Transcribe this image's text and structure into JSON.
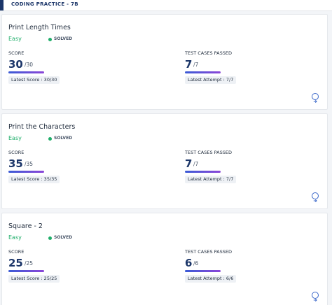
{
  "header": {
    "title": "CODING PRACTICE - 7B"
  },
  "labels": {
    "score": "SCORE",
    "test_cases": "TEST CASES PASSED"
  },
  "problems": [
    {
      "title": "Print Length Times",
      "difficulty": "Easy",
      "status": "SOLVED",
      "score": "30",
      "score_total": "/30",
      "latest_score": "Latest Score : 30/30",
      "tests": "7",
      "tests_total": "/7",
      "latest_attempt": "Latest Attempt : 7/7"
    },
    {
      "title": "Print the Characters",
      "difficulty": "Easy",
      "status": "SOLVED",
      "score": "35",
      "score_total": "/35",
      "latest_score": "Latest Score : 35/35",
      "tests": "7",
      "tests_total": "/7",
      "latest_attempt": "Latest Attempt : 7/7"
    },
    {
      "title": "Square - 2",
      "difficulty": "Easy",
      "status": "SOLVED",
      "score": "25",
      "score_total": "/25",
      "latest_score": "Latest Score : 25/25",
      "tests": "6",
      "tests_total": "/6",
      "latest_attempt": "Latest Attempt : 6/6"
    }
  ]
}
